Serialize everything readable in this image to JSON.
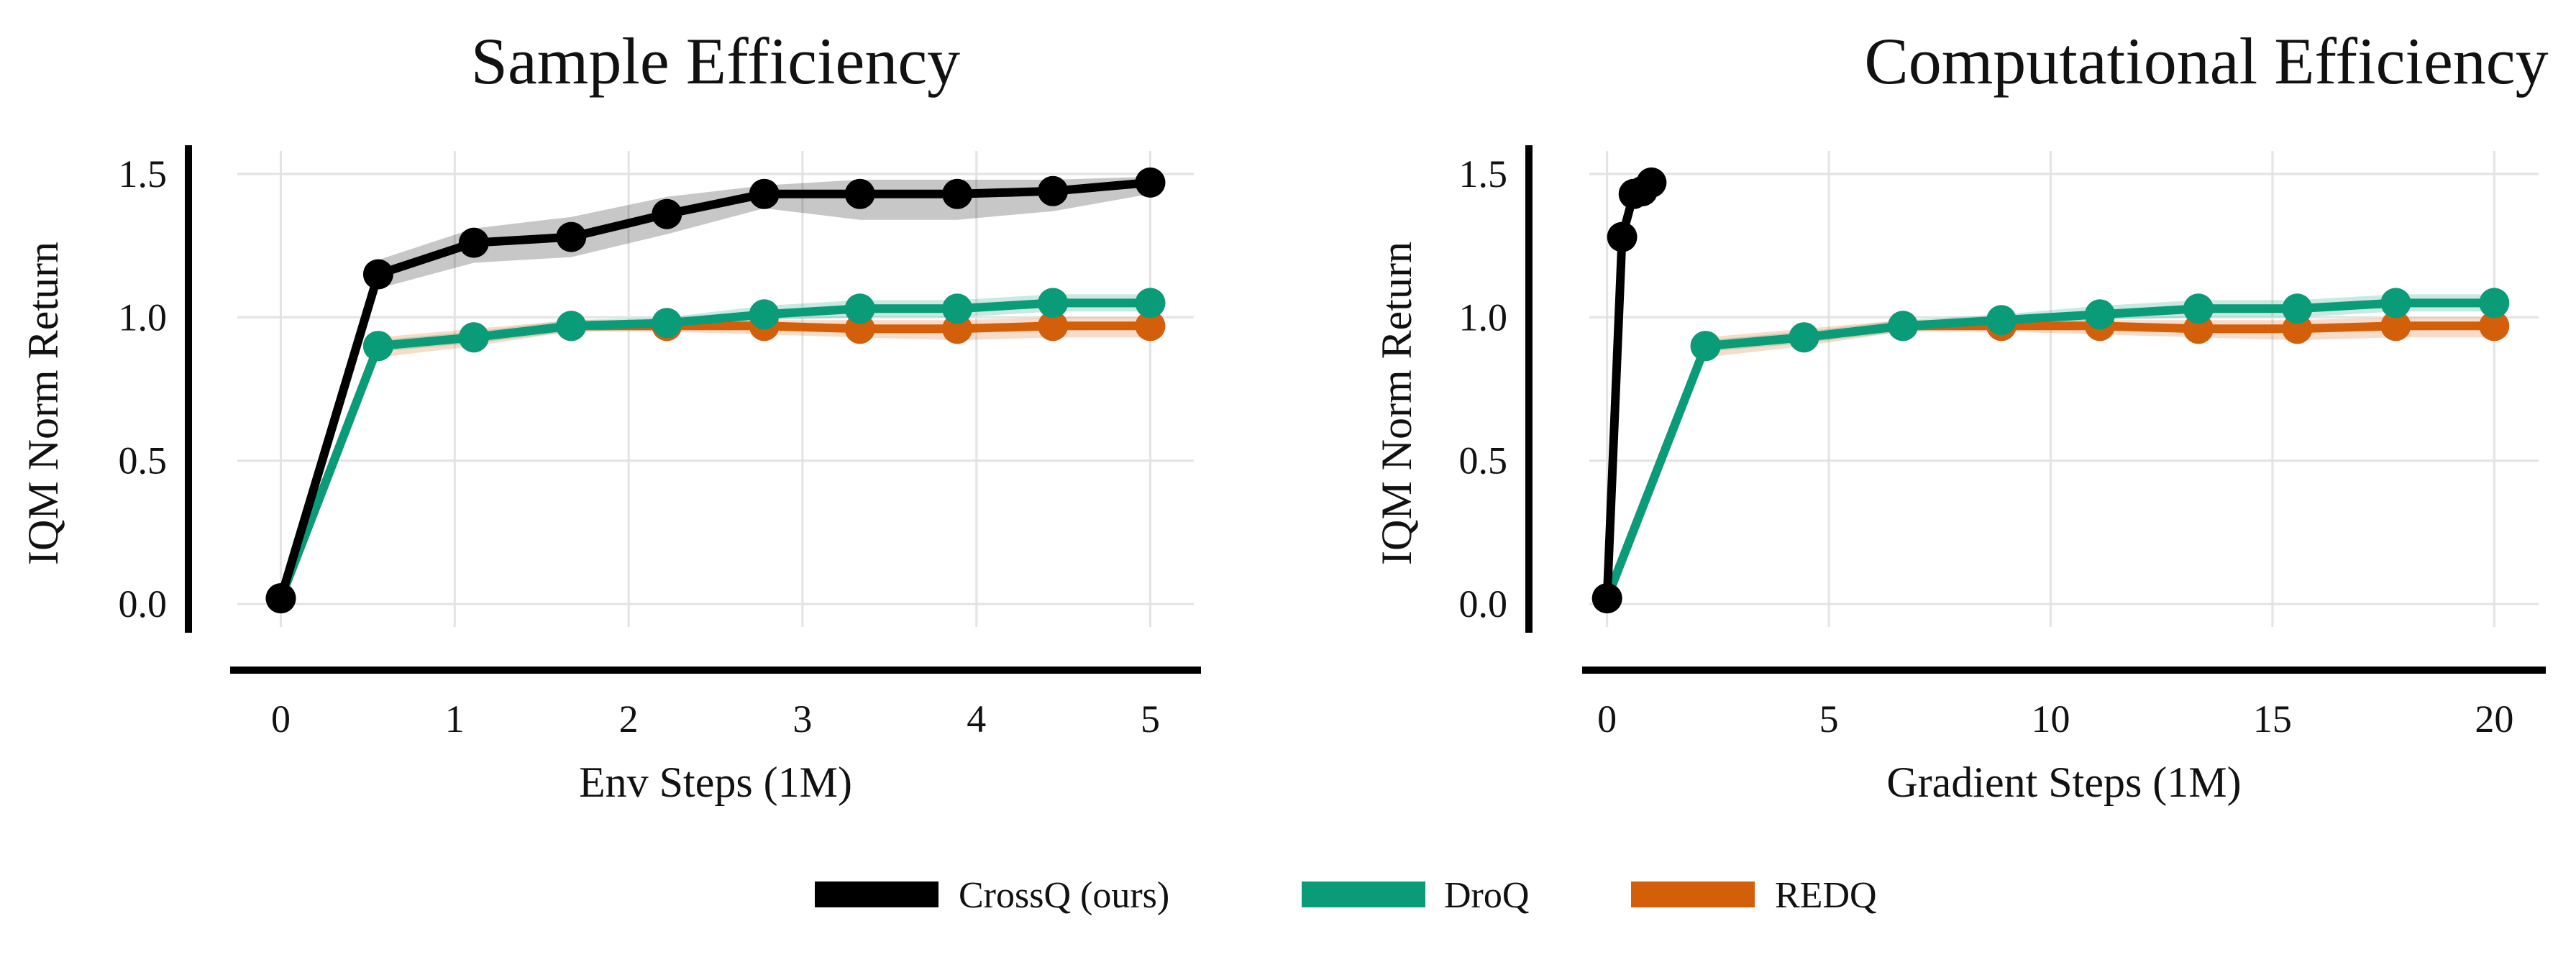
{
  "colors": {
    "crossq": "#000000",
    "droq": "#0a9b78",
    "redq": "#d45f0a",
    "grid": "#e3e3e3"
  },
  "legend": {
    "placement": "bottom-center",
    "items": [
      {
        "key": "crossq",
        "label": "CrossQ (ours)",
        "color": "#000000"
      },
      {
        "key": "droq",
        "label": "DroQ",
        "color": "#0a9b78"
      },
      {
        "key": "redq",
        "label": "REDQ",
        "color": "#d45f0a"
      }
    ]
  },
  "chart_data": [
    {
      "type": "line",
      "title": "Sample Efficiency",
      "xlabel": "Env Steps (1M)",
      "ylabel": "IQM Norm Return",
      "xlim": [
        -0.25,
        5.25
      ],
      "ylim": [
        -0.08,
        1.58
      ],
      "xticks": [
        0,
        1,
        2,
        3,
        4,
        5
      ],
      "yticks": [
        0.0,
        0.5,
        1.0,
        1.5
      ],
      "ytick_labels": [
        "0.0",
        "0.5",
        "1.0",
        "1.5"
      ],
      "grid": true,
      "series": [
        {
          "name": "CrossQ (ours)",
          "color": "#000000",
          "x": [
            0,
            0.56,
            1.11,
            1.67,
            2.22,
            2.78,
            3.33,
            3.89,
            4.44,
            5.0
          ],
          "y": [
            0.02,
            1.15,
            1.26,
            1.28,
            1.36,
            1.43,
            1.43,
            1.43,
            1.44,
            1.47
          ],
          "lower": [
            0.02,
            1.1,
            1.19,
            1.21,
            1.29,
            1.38,
            1.34,
            1.34,
            1.37,
            1.43
          ],
          "upper": [
            0.02,
            1.2,
            1.31,
            1.35,
            1.42,
            1.46,
            1.48,
            1.48,
            1.48,
            1.49
          ]
        },
        {
          "name": "DroQ",
          "color": "#0a9b78",
          "x": [
            0,
            0.56,
            1.11,
            1.67,
            2.22,
            2.78,
            3.33,
            3.89,
            4.44,
            5.0
          ],
          "y": [
            0.02,
            0.9,
            0.93,
            0.97,
            0.98,
            1.01,
            1.03,
            1.03,
            1.05,
            1.05
          ],
          "lower": [
            0.02,
            0.88,
            0.91,
            0.95,
            0.96,
            0.99,
            1.0,
            1.0,
            1.02,
            1.02
          ],
          "upper": [
            0.02,
            0.92,
            0.95,
            0.99,
            1.0,
            1.04,
            1.06,
            1.06,
            1.08,
            1.08
          ]
        },
        {
          "name": "REDQ",
          "color": "#d45f0a",
          "x": [
            0,
            0.56,
            1.11,
            1.67,
            2.22,
            2.78,
            3.33,
            3.89,
            4.44,
            5.0
          ],
          "y": [
            0.02,
            0.9,
            0.93,
            0.97,
            0.97,
            0.97,
            0.96,
            0.96,
            0.97,
            0.97
          ],
          "lower": [
            0.02,
            0.86,
            0.9,
            0.95,
            0.95,
            0.94,
            0.93,
            0.92,
            0.93,
            0.93
          ],
          "upper": [
            0.02,
            0.93,
            0.96,
            0.99,
            0.99,
            0.99,
            0.99,
            0.99,
            1.0,
            1.0
          ]
        }
      ]
    },
    {
      "type": "line",
      "title": "Computational Efficiency",
      "xlabel": "Gradient Steps (1M)",
      "ylabel": "IQM Norm Return",
      "xlim": [
        -0.4,
        21.0
      ],
      "ylim": [
        -0.08,
        1.58
      ],
      "xticks": [
        0,
        5,
        10,
        15,
        20
      ],
      "yticks": [
        0.0,
        0.5,
        1.0,
        1.5
      ],
      "ytick_labels": [
        "0.0",
        "0.5",
        "1.0",
        "1.5"
      ],
      "grid": true,
      "series": [
        {
          "name": "CrossQ (ours)",
          "color": "#000000",
          "x": [
            0,
            0.34,
            0.6,
            0.8,
            1.0
          ],
          "y": [
            0.02,
            1.28,
            1.43,
            1.44,
            1.47
          ],
          "lower": [
            0.02,
            1.22,
            1.38,
            1.39,
            1.43
          ],
          "upper": [
            0.02,
            1.33,
            1.47,
            1.48,
            1.49
          ]
        },
        {
          "name": "DroQ",
          "color": "#0a9b78",
          "x": [
            0,
            2.22,
            4.44,
            6.67,
            8.89,
            11.11,
            13.33,
            15.56,
            17.78,
            20.0
          ],
          "y": [
            0.02,
            0.9,
            0.93,
            0.97,
            0.99,
            1.01,
            1.03,
            1.03,
            1.05,
            1.05
          ],
          "lower": [
            0.02,
            0.88,
            0.91,
            0.95,
            0.97,
            0.99,
            1.0,
            1.0,
            1.02,
            1.02
          ],
          "upper": [
            0.02,
            0.92,
            0.95,
            0.99,
            1.01,
            1.04,
            1.06,
            1.06,
            1.08,
            1.08
          ]
        },
        {
          "name": "REDQ",
          "color": "#d45f0a",
          "x": [
            0,
            2.22,
            4.44,
            6.67,
            8.89,
            11.11,
            13.33,
            15.56,
            17.78,
            20.0
          ],
          "y": [
            0.02,
            0.9,
            0.93,
            0.97,
            0.97,
            0.97,
            0.96,
            0.96,
            0.97,
            0.97
          ],
          "lower": [
            0.02,
            0.86,
            0.9,
            0.95,
            0.95,
            0.94,
            0.93,
            0.92,
            0.93,
            0.93
          ],
          "upper": [
            0.02,
            0.93,
            0.96,
            0.99,
            0.99,
            0.99,
            0.99,
            0.99,
            1.0,
            1.0
          ]
        }
      ]
    }
  ]
}
